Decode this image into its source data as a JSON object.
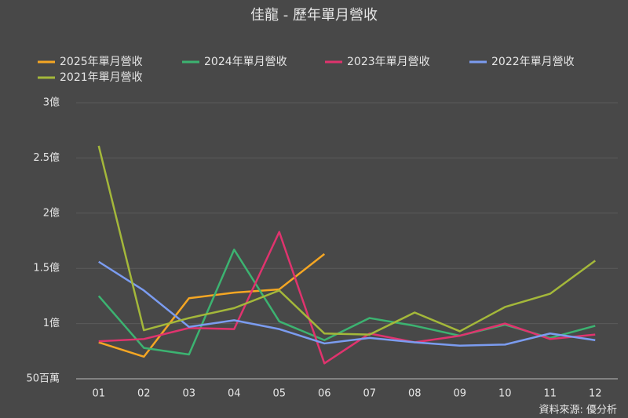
{
  "chart_data": {
    "type": "line",
    "title": "佳龍 - 歷年單月營收",
    "categories": [
      "01",
      "02",
      "03",
      "04",
      "05",
      "06",
      "07",
      "08",
      "09",
      "10",
      "11",
      "12"
    ],
    "series": [
      {
        "name": "2025年單月營收",
        "color": "#f5a623",
        "values": [
          0.83,
          0.7,
          1.23,
          1.28,
          1.31,
          1.63,
          null,
          null,
          null,
          null,
          null,
          null
        ]
      },
      {
        "name": "2024年單月營收",
        "color": "#3cb371",
        "values": [
          1.25,
          0.78,
          0.72,
          1.67,
          1.02,
          0.85,
          1.05,
          0.98,
          0.89,
          0.99,
          0.87,
          0.98
        ]
      },
      {
        "name": "2023年單月營收",
        "color": "#e0336e",
        "values": [
          0.84,
          0.86,
          0.96,
          0.95,
          1.83,
          0.64,
          0.91,
          0.83,
          0.89,
          1.0,
          0.86,
          0.9
        ]
      },
      {
        "name": "2022年單月營收",
        "color": "#7b9cf0",
        "values": [
          1.56,
          1.3,
          0.97,
          1.03,
          0.95,
          0.82,
          0.87,
          0.83,
          0.8,
          0.81,
          0.91,
          0.85
        ]
      },
      {
        "name": "2021年單月營收",
        "color": "#a4b83a",
        "values": [
          2.61,
          0.94,
          1.05,
          1.14,
          1.3,
          0.91,
          0.9,
          1.1,
          0.93,
          1.15,
          1.27,
          1.57
        ]
      }
    ],
    "ylim": [
      0.5,
      3
    ],
    "yticks": [
      {
        "value": 0.5,
        "label": "50百萬"
      },
      {
        "value": 1,
        "label": "1億"
      },
      {
        "value": 1.5,
        "label": "1.5億"
      },
      {
        "value": 2,
        "label": "2億"
      },
      {
        "value": 2.5,
        "label": "2.5億"
      },
      {
        "value": 3,
        "label": "3億"
      }
    ],
    "grid": true,
    "legend": "top-left",
    "annotation": "資料來源: 優分析"
  }
}
